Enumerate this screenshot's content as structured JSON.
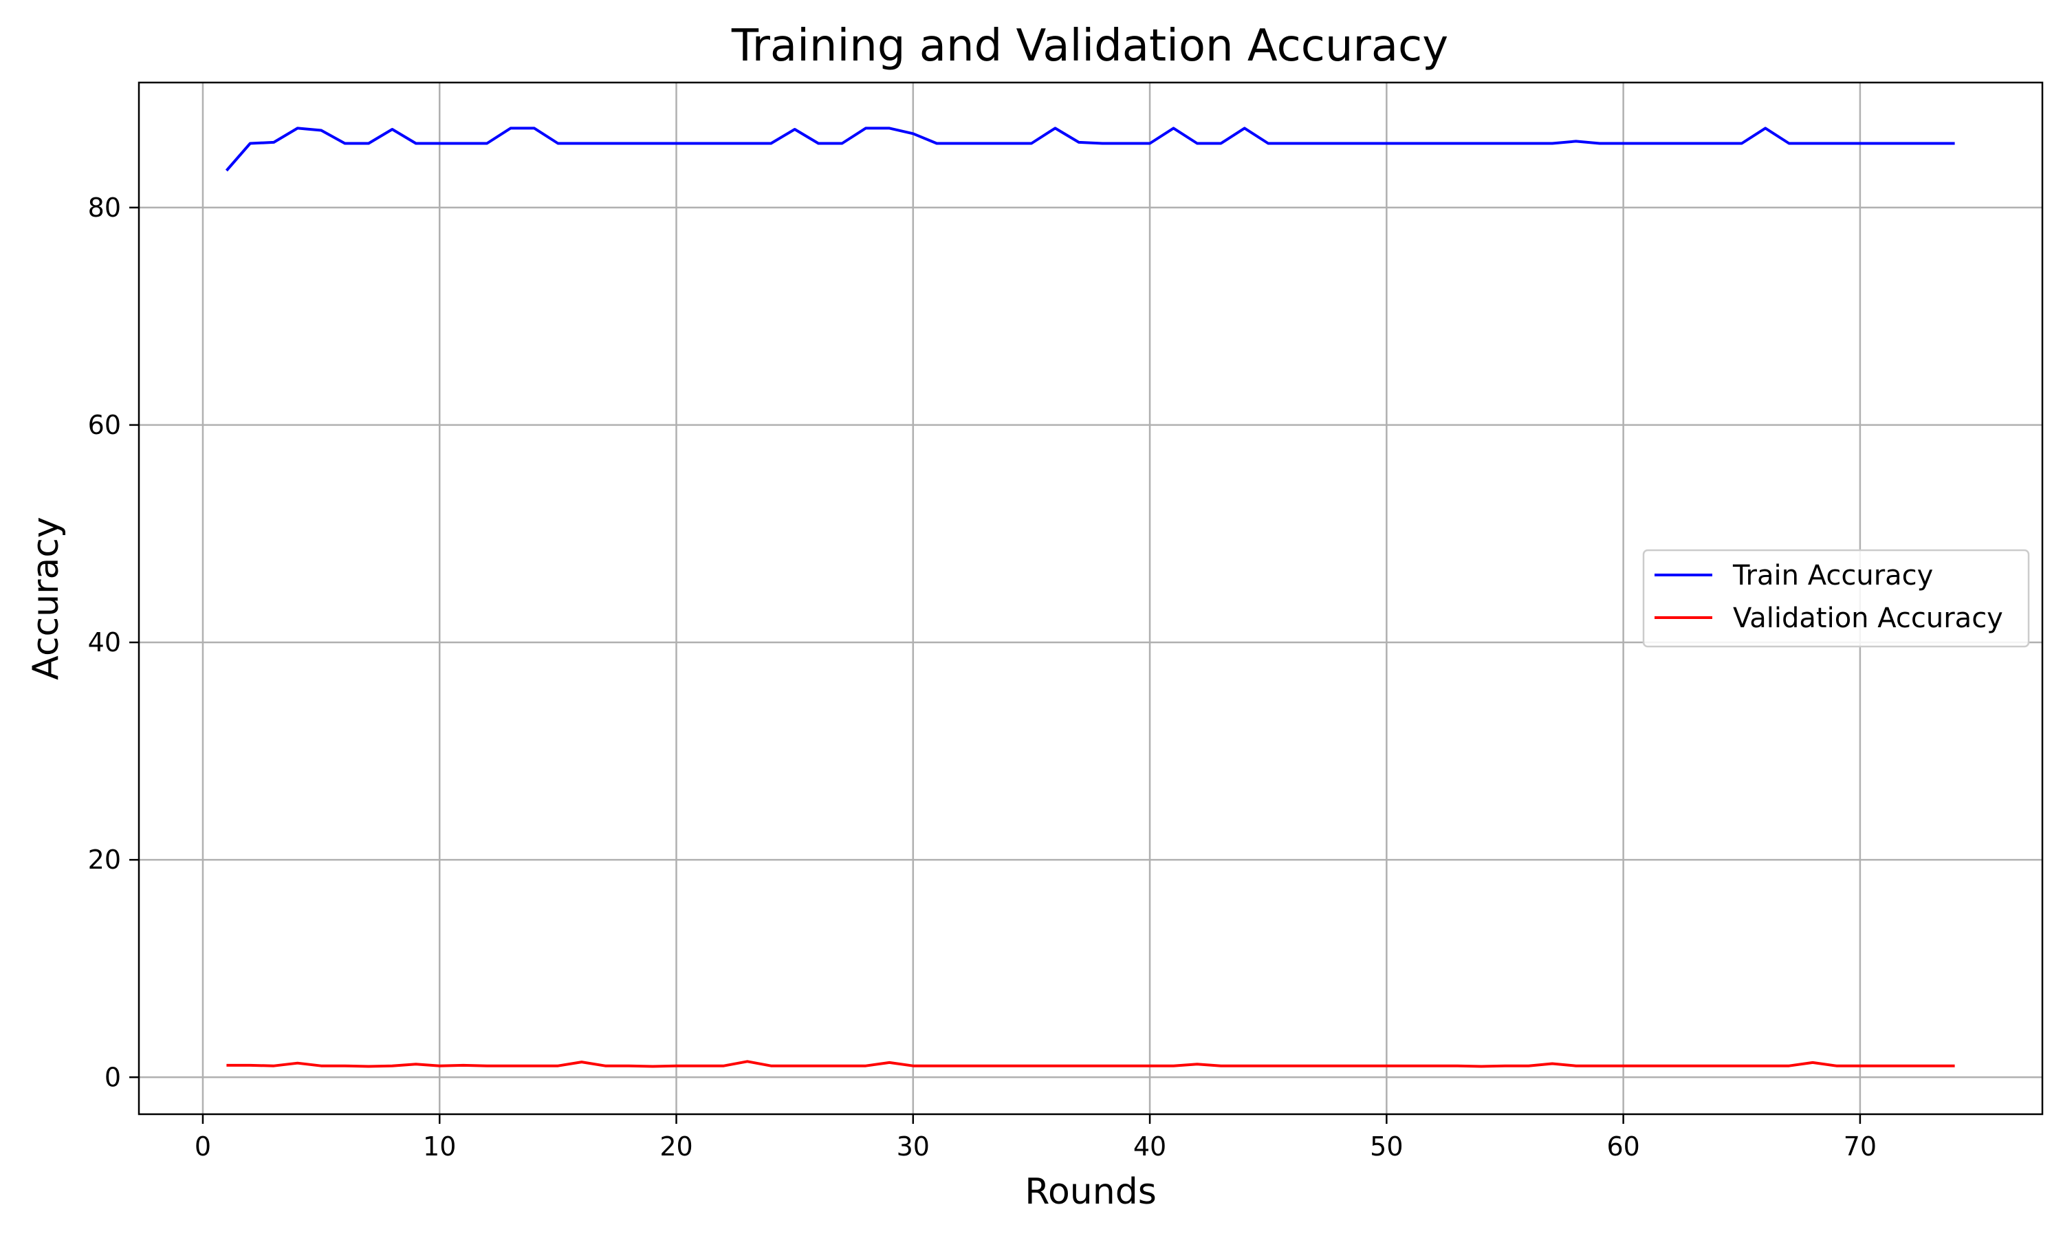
{
  "chart_data": {
    "type": "line",
    "title": "Training and Validation Accuracy",
    "xlabel": "Rounds",
    "ylabel": "Accuracy",
    "xlim": [
      -2.7,
      77.7
    ],
    "ylim": [
      -3.4,
      91.5
    ],
    "xticks": [
      0,
      10,
      20,
      30,
      40,
      50,
      60,
      70
    ],
    "yticks": [
      0,
      20,
      40,
      60,
      80
    ],
    "grid": true,
    "legend_position": "center-right",
    "x": [
      1,
      2,
      3,
      4,
      5,
      6,
      7,
      8,
      9,
      10,
      11,
      12,
      13,
      14,
      15,
      16,
      17,
      18,
      19,
      20,
      21,
      22,
      23,
      24,
      25,
      26,
      27,
      28,
      29,
      30,
      31,
      32,
      33,
      34,
      35,
      36,
      37,
      38,
      39,
      40,
      41,
      42,
      43,
      44,
      45,
      46,
      47,
      48,
      49,
      50,
      51,
      52,
      53,
      54,
      55,
      56,
      57,
      58,
      59,
      60,
      61,
      62,
      63,
      64,
      65,
      66,
      67,
      68,
      69,
      70,
      71,
      72,
      73,
      74
    ],
    "series": [
      {
        "name": "Train Accuracy",
        "color": "#0000ff",
        "values": [
          83.4,
          85.9,
          86.0,
          87.3,
          87.1,
          85.9,
          85.9,
          87.2,
          85.9,
          85.9,
          85.9,
          85.9,
          87.3,
          87.3,
          85.9,
          85.9,
          85.9,
          85.9,
          85.9,
          85.9,
          85.9,
          85.9,
          85.9,
          85.9,
          87.2,
          85.9,
          85.9,
          87.3,
          87.3,
          86.8,
          85.9,
          85.9,
          85.9,
          85.9,
          85.9,
          87.3,
          86.0,
          85.9,
          85.9,
          85.9,
          87.3,
          85.9,
          85.9,
          87.3,
          85.9,
          85.9,
          85.9,
          85.9,
          85.9,
          85.9,
          85.9,
          85.9,
          85.9,
          85.9,
          85.9,
          85.9,
          85.9,
          86.1,
          85.9,
          85.9,
          85.9,
          85.9,
          85.9,
          85.9,
          85.9,
          87.3,
          85.9,
          85.9,
          85.9,
          85.9,
          85.9,
          85.9,
          85.9,
          85.9
        ]
      },
      {
        "name": "Validation Accuracy",
        "color": "#ff0000",
        "values": [
          1.1,
          1.1,
          1.05,
          1.3,
          1.05,
          1.05,
          1.0,
          1.05,
          1.2,
          1.05,
          1.1,
          1.05,
          1.05,
          1.05,
          1.05,
          1.4,
          1.05,
          1.05,
          1.0,
          1.05,
          1.05,
          1.05,
          1.45,
          1.05,
          1.05,
          1.05,
          1.05,
          1.05,
          1.35,
          1.05,
          1.05,
          1.05,
          1.05,
          1.05,
          1.05,
          1.05,
          1.05,
          1.05,
          1.05,
          1.05,
          1.05,
          1.2,
          1.05,
          1.05,
          1.05,
          1.05,
          1.05,
          1.05,
          1.05,
          1.05,
          1.05,
          1.05,
          1.05,
          1.0,
          1.05,
          1.05,
          1.25,
          1.05,
          1.05,
          1.05,
          1.05,
          1.05,
          1.05,
          1.05,
          1.05,
          1.05,
          1.05,
          1.35,
          1.05,
          1.05,
          1.05,
          1.05,
          1.05,
          1.05
        ]
      }
    ]
  }
}
